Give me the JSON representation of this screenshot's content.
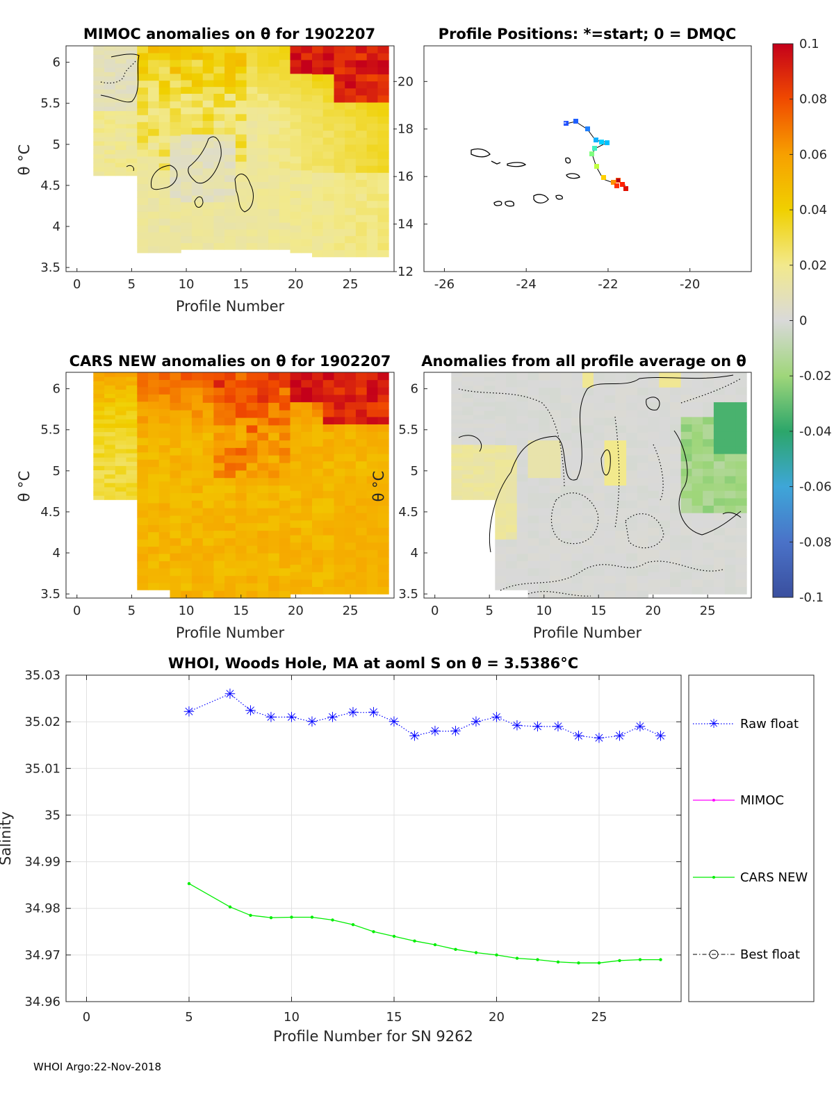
{
  "footer": "WHOI Argo:22-Nov-2018",
  "colorbar": {
    "ticks": [
      "0.1",
      "0.08",
      "0.06",
      "0.04",
      "0.02",
      "0",
      "-0.02",
      "-0.04",
      "-0.06",
      "-0.08",
      "-0.1"
    ]
  },
  "chart_data": [
    {
      "type": "heatmap",
      "panel": "mimoc",
      "title": "MIMOC anomalies on θ  for 1902207",
      "xlabel": "Profile Number",
      "ylabel": "θ °C",
      "xlim": [
        -1,
        29
      ],
      "ylim": [
        3.45,
        6.2
      ],
      "xticks": [
        "0",
        "5",
        "10",
        "15",
        "20",
        "25"
      ],
      "yticks": [
        "6",
        "5.5",
        "5",
        "4.5",
        "4",
        "3.5"
      ],
      "description_values": {
        "min": 0.005,
        "max": 0.1
      }
    },
    {
      "type": "scatter",
      "panel": "positions",
      "title": "Profile Positions: *=start; 0 = DMQC",
      "xlim": [
        -26.5,
        -18.5
      ],
      "ylim": [
        12,
        21.5
      ],
      "xticks": [
        "-26",
        "-24",
        "-22",
        "-20"
      ],
      "yticks": [
        "20",
        "18",
        "16",
        "14",
        "12"
      ],
      "track_lon": [
        -23.0,
        -22.8,
        -22.5,
        -22.3,
        -22.1,
        -22.3,
        -22.2,
        -22.0,
        -21.8,
        -21.6,
        -21.5
      ],
      "track_lat": [
        18.2,
        18.3,
        17.9,
        17.4,
        17.4,
        16.9,
        16.4,
        15.8,
        15.6,
        15.8,
        15.6
      ]
    },
    {
      "type": "heatmap",
      "panel": "cars",
      "title": "CARS NEW anomalies on θ for 1902207",
      "xlabel": "Profile Number",
      "ylabel": "θ °C",
      "xlim": [
        -1,
        29
      ],
      "ylim": [
        3.45,
        6.2
      ],
      "xticks": [
        "0",
        "5",
        "10",
        "15",
        "20",
        "25"
      ],
      "yticks": [
        "6",
        "5.5",
        "5",
        "4.5",
        "4",
        "3.5"
      ]
    },
    {
      "type": "heatmap",
      "panel": "allavg",
      "title": "Anomalies from all profile average on θ",
      "xlabel": "Profile Number",
      "ylabel": "θ °C",
      "xlim": [
        -1,
        29
      ],
      "ylim": [
        3.45,
        6.2
      ],
      "xticks": [
        "0",
        "5",
        "10",
        "15",
        "20",
        "25"
      ],
      "yticks": [
        "6",
        "5.5",
        "5",
        "4.5",
        "4",
        "3.5"
      ]
    },
    {
      "type": "line",
      "panel": "salinity",
      "title": "WHOI, Woods Hole, MA at aoml S on θ = 3.5386°C",
      "xlabel": "Profile Number for SN 9262",
      "ylabel": "Salinity",
      "xlim": [
        -1,
        29
      ],
      "ylim": [
        34.96,
        35.03
      ],
      "xticks": [
        0,
        5,
        10,
        15,
        20,
        25
      ],
      "yticks": [
        "35.03",
        "35.02",
        "35.01",
        "35",
        "34.99",
        "34.98",
        "34.97",
        "34.96"
      ],
      "series": [
        {
          "name": "Raw float",
          "color": "#0000ff",
          "x": [
            5,
            7,
            8,
            9,
            10,
            11,
            12,
            13,
            14,
            15,
            16,
            17,
            18,
            19,
            20,
            21,
            22,
            23,
            24,
            25,
            26,
            27,
            28
          ],
          "y": [
            35.0222,
            35.026,
            35.0224,
            35.021,
            35.021,
            35.02,
            35.021,
            35.022,
            35.022,
            35.02,
            35.017,
            35.018,
            35.018,
            35.02,
            35.021,
            35.0192,
            35.019,
            35.019,
            35.017,
            35.0165,
            35.017,
            35.019,
            35.017
          ]
        },
        {
          "name": "MIMOC",
          "color": "#ff00ff",
          "x": [],
          "y": []
        },
        {
          "name": "CARS NEW",
          "color": "#00ee00",
          "x": [
            5,
            7,
            8,
            9,
            10,
            11,
            12,
            13,
            14,
            15,
            16,
            17,
            18,
            19,
            20,
            21,
            22,
            23,
            24,
            25,
            26,
            27,
            28
          ],
          "y": [
            34.9853,
            34.9803,
            34.9785,
            34.978,
            34.9781,
            34.9781,
            34.9775,
            34.9765,
            34.975,
            34.974,
            34.973,
            34.9722,
            34.9712,
            34.9705,
            34.97,
            34.9693,
            34.969,
            34.9685,
            34.9683,
            34.9683,
            34.9688,
            34.969,
            34.969
          ]
        },
        {
          "name": "Best float",
          "color": "#000000",
          "x": [],
          "y": []
        }
      ]
    }
  ]
}
